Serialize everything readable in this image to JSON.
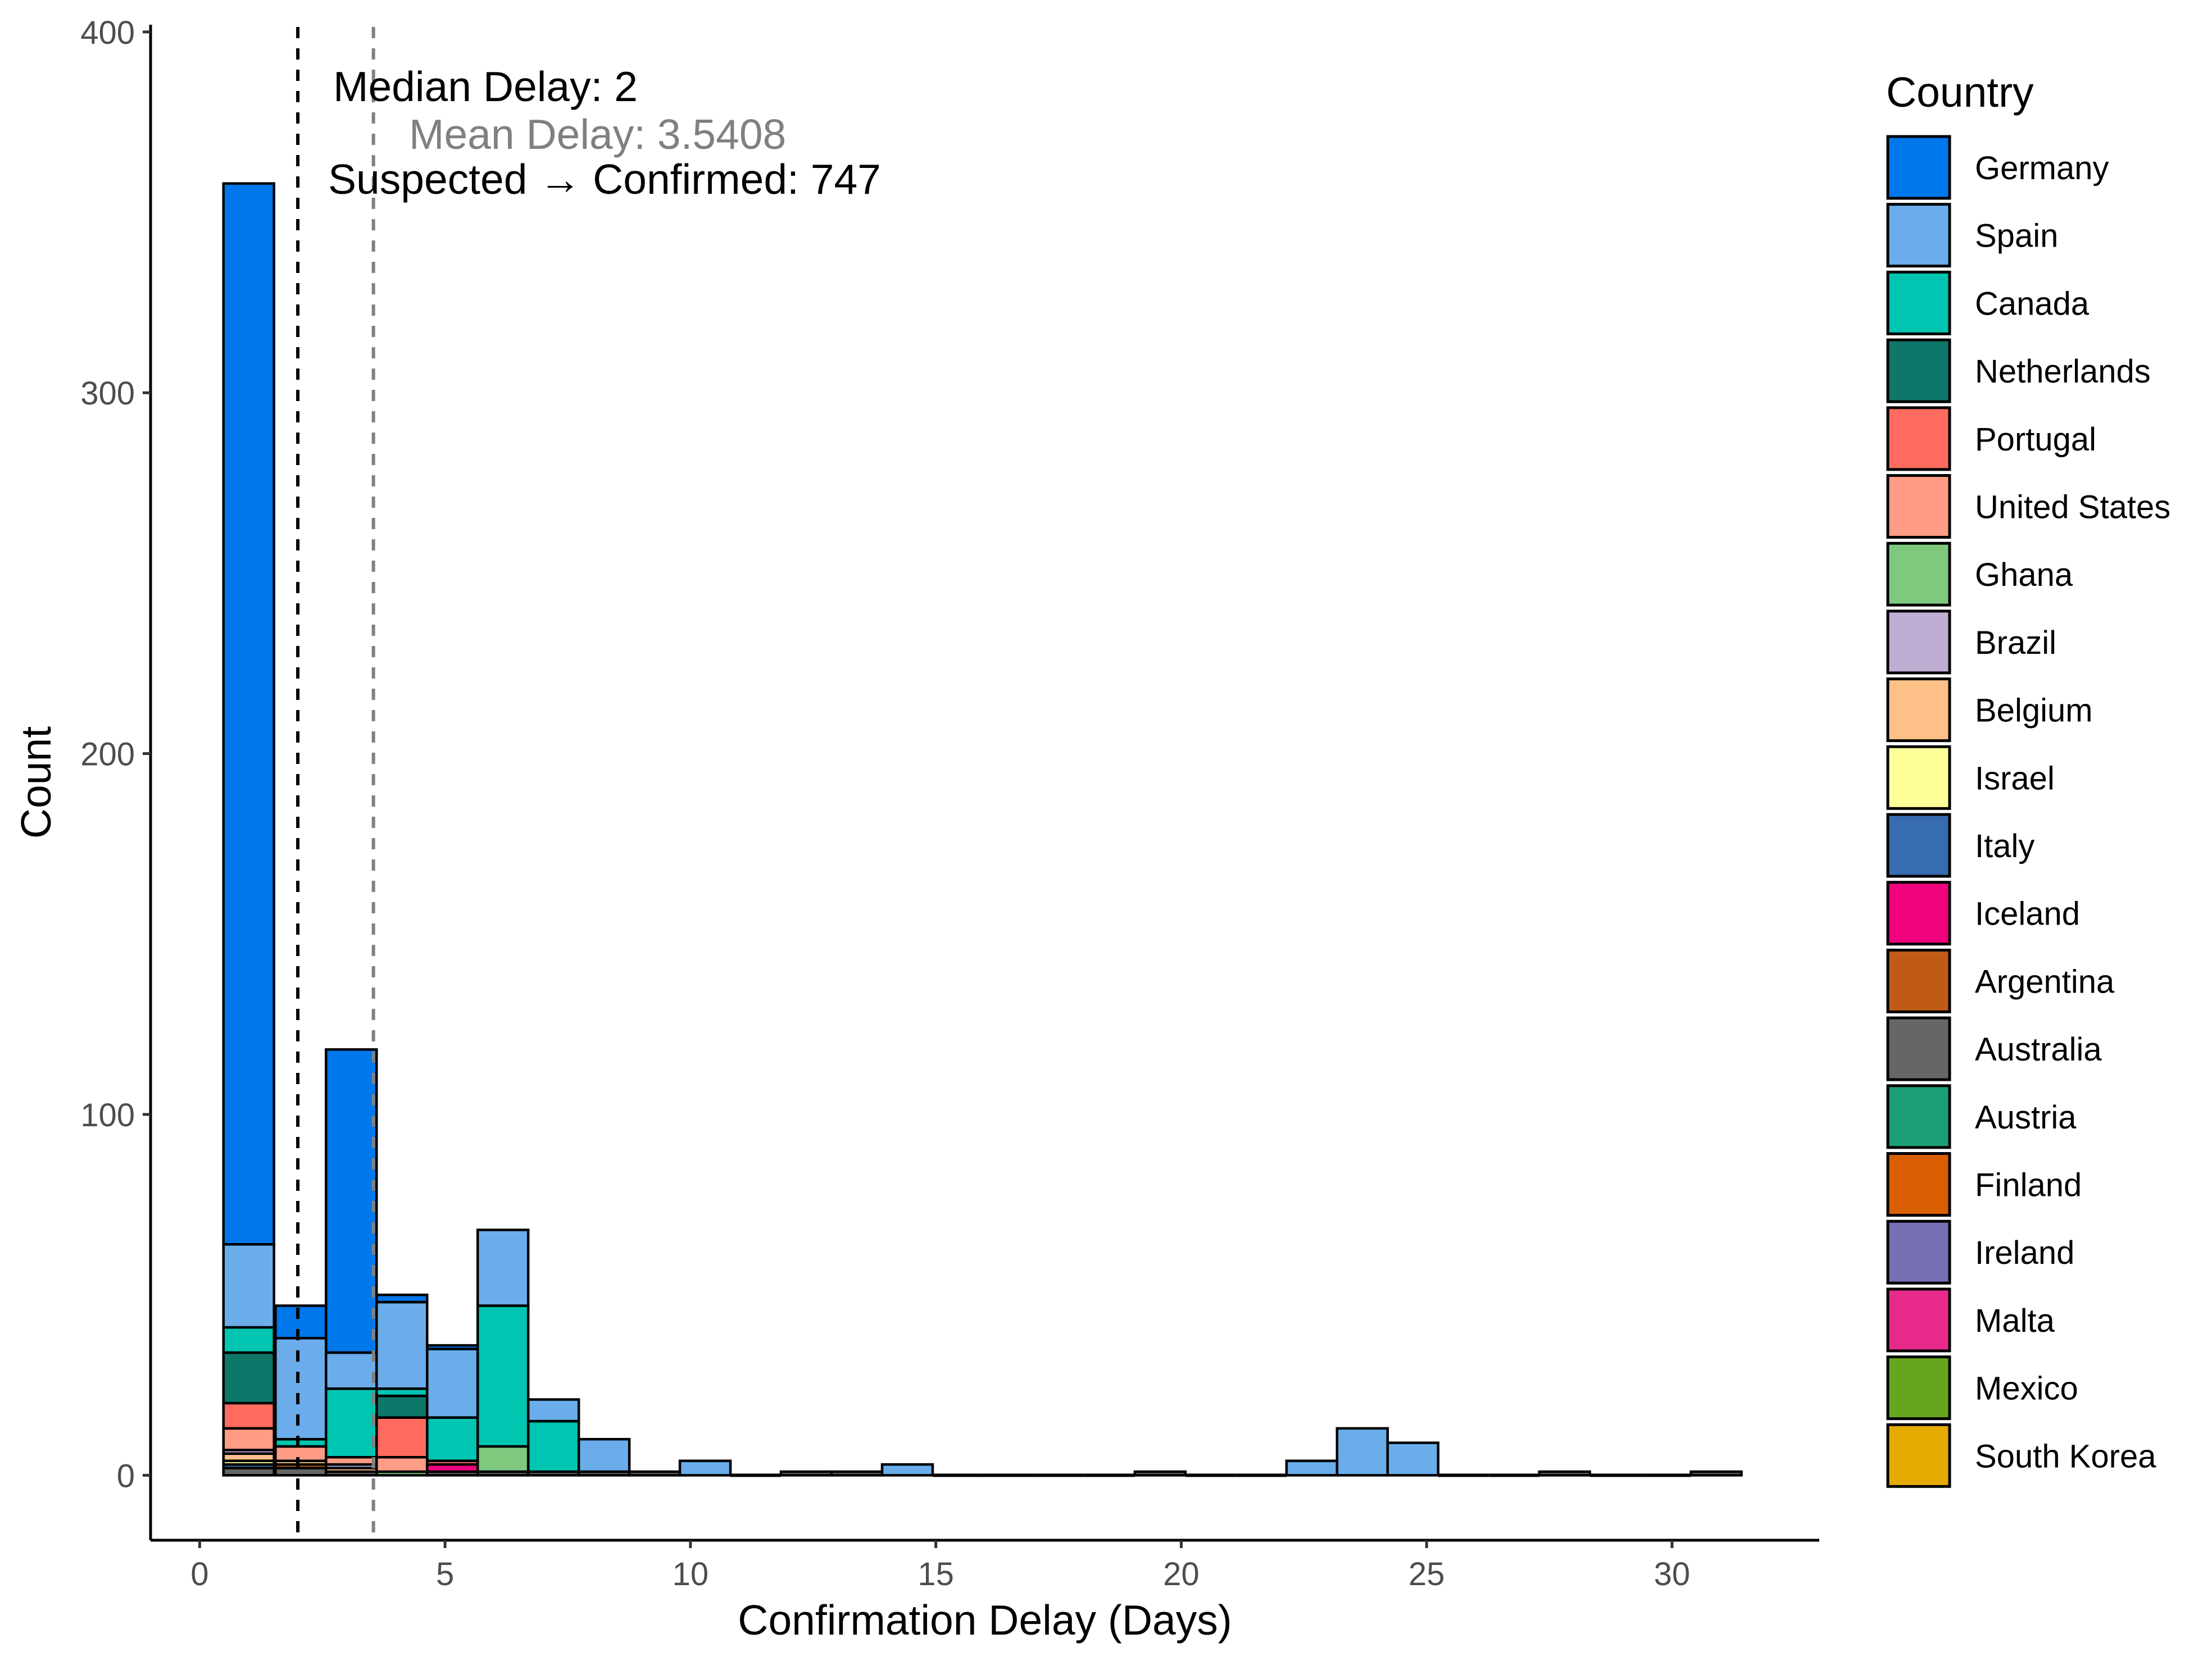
{
  "chart_data": {
    "type": "bar",
    "stacked": true,
    "xlabel": "Confirmation Delay (Days)",
    "ylabel": "Count",
    "xlim": [
      -1,
      33
    ],
    "ylim": [
      -18,
      402
    ],
    "xticks": [
      0,
      5,
      10,
      15,
      20,
      25,
      30
    ],
    "yticks": [
      0,
      100,
      200,
      300,
      400
    ],
    "bin_width": 1.03,
    "legend_title": "Country",
    "legend_position": "right",
    "grid": false,
    "annotations": {
      "median": {
        "label": "Median Delay: 2",
        "x": 2,
        "color": "#000000"
      },
      "mean": {
        "label": "Mean Delay: 3.5408",
        "x": 3.5408,
        "color": "#808080"
      },
      "total": {
        "label": "Suspected → Confirmed: 747",
        "color": "#000000"
      }
    },
    "series": [
      {
        "name": "Germany",
        "color": "#0077EA"
      },
      {
        "name": "Spain",
        "color": "#6AADEA"
      },
      {
        "name": "Canada",
        "color": "#00C5B0"
      },
      {
        "name": "Netherlands",
        "color": "#0E776A"
      },
      {
        "name": "Portugal",
        "color": "#FF6B5E"
      },
      {
        "name": "United States",
        "color": "#FF9C86"
      },
      {
        "name": "Ghana",
        "color": "#7FC97F"
      },
      {
        "name": "Brazil",
        "color": "#BEAED4"
      },
      {
        "name": "Belgium",
        "color": "#FDC086"
      },
      {
        "name": "Israel",
        "color": "#FFFF99"
      },
      {
        "name": "Italy",
        "color": "#386CB0"
      },
      {
        "name": "Iceland",
        "color": "#F0027F"
      },
      {
        "name": "Argentina",
        "color": "#BF5B17"
      },
      {
        "name": "Australia",
        "color": "#666666"
      },
      {
        "name": "Austria",
        "color": "#1B9E77"
      },
      {
        "name": "Finland",
        "color": "#D95F02"
      },
      {
        "name": "Ireland",
        "color": "#7570B3"
      },
      {
        "name": "Malta",
        "color": "#E7298A"
      },
      {
        "name": "Mexico",
        "color": "#66A61E"
      },
      {
        "name": "South Korea",
        "color": "#E6AB02"
      }
    ],
    "bins": [
      {
        "x": 1.0,
        "stack": [
          [
            "Australia",
            2
          ],
          [
            "Italy",
            1
          ],
          [
            "Israel",
            1
          ],
          [
            "Belgium",
            2
          ],
          [
            "Brazil",
            1
          ],
          [
            "United States",
            6
          ],
          [
            "Portugal",
            7
          ],
          [
            "Netherlands",
            14
          ],
          [
            "Canada",
            7
          ],
          [
            "Spain",
            23
          ],
          [
            "Germany",
            294
          ]
        ]
      },
      {
        "x": 2.06,
        "stack": [
          [
            "Australia",
            2
          ],
          [
            "Argentina",
            1
          ],
          [
            "Belgium",
            1
          ],
          [
            "United States",
            4
          ],
          [
            "Canada",
            2
          ],
          [
            "Spain",
            28
          ],
          [
            "Germany",
            9
          ]
        ]
      },
      {
        "x": 3.09,
        "stack": [
          [
            "Australia",
            1
          ],
          [
            "Belgium",
            1
          ],
          [
            "Brazil",
            1
          ],
          [
            "United States",
            2
          ],
          [
            "Canada",
            19
          ],
          [
            "Spain",
            10
          ],
          [
            "Germany",
            84
          ]
        ]
      },
      {
        "x": 4.12,
        "stack": [
          [
            "Ghana",
            1
          ],
          [
            "United States",
            4
          ],
          [
            "Portugal",
            11
          ],
          [
            "Netherlands",
            6
          ],
          [
            "Canada",
            2
          ],
          [
            "Spain",
            24
          ],
          [
            "Germany",
            2
          ]
        ]
      },
      {
        "x": 5.15,
        "stack": [
          [
            "Australia",
            1
          ],
          [
            "Iceland",
            2
          ],
          [
            "Portugal",
            1
          ],
          [
            "Canada",
            12
          ],
          [
            "Spain",
            19
          ],
          [
            "Germany",
            1
          ]
        ]
      },
      {
        "x": 6.18,
        "stack": [
          [
            "Australia",
            1
          ],
          [
            "Ghana",
            7
          ],
          [
            "Canada",
            39
          ],
          [
            "Spain",
            21
          ]
        ]
      },
      {
        "x": 7.21,
        "stack": [
          [
            "Australia",
            1
          ],
          [
            "Canada",
            14
          ],
          [
            "Spain",
            6
          ]
        ]
      },
      {
        "x": 8.24,
        "stack": [
          [
            "Australia",
            1
          ],
          [
            "Spain",
            9
          ]
        ]
      },
      {
        "x": 9.27,
        "stack": [
          [
            "Australia",
            1
          ]
        ]
      },
      {
        "x": 10.3,
        "stack": [
          [
            "Spain",
            4
          ]
        ]
      },
      {
        "x": 11.33,
        "stack": []
      },
      {
        "x": 12.36,
        "stack": [
          [
            "Australia",
            1
          ]
        ]
      },
      {
        "x": 13.39,
        "stack": [
          [
            "Australia",
            1
          ]
        ]
      },
      {
        "x": 14.42,
        "stack": [
          [
            "Spain",
            3
          ]
        ]
      },
      {
        "x": 15.45,
        "stack": []
      },
      {
        "x": 16.48,
        "stack": []
      },
      {
        "x": 17.51,
        "stack": []
      },
      {
        "x": 18.54,
        "stack": []
      },
      {
        "x": 19.57,
        "stack": [
          [
            "Australia",
            1
          ]
        ]
      },
      {
        "x": 20.6,
        "stack": []
      },
      {
        "x": 21.63,
        "stack": []
      },
      {
        "x": 22.66,
        "stack": [
          [
            "Spain",
            4
          ]
        ]
      },
      {
        "x": 23.69,
        "stack": [
          [
            "Spain",
            13
          ]
        ]
      },
      {
        "x": 24.72,
        "stack": [
          [
            "Spain",
            9
          ]
        ]
      },
      {
        "x": 25.75,
        "stack": []
      },
      {
        "x": 26.78,
        "stack": []
      },
      {
        "x": 27.81,
        "stack": [
          [
            "Australia",
            1
          ]
        ]
      },
      {
        "x": 28.84,
        "stack": []
      },
      {
        "x": 29.87,
        "stack": []
      },
      {
        "x": 30.9,
        "stack": [
          [
            "Australia",
            1
          ]
        ]
      }
    ]
  }
}
